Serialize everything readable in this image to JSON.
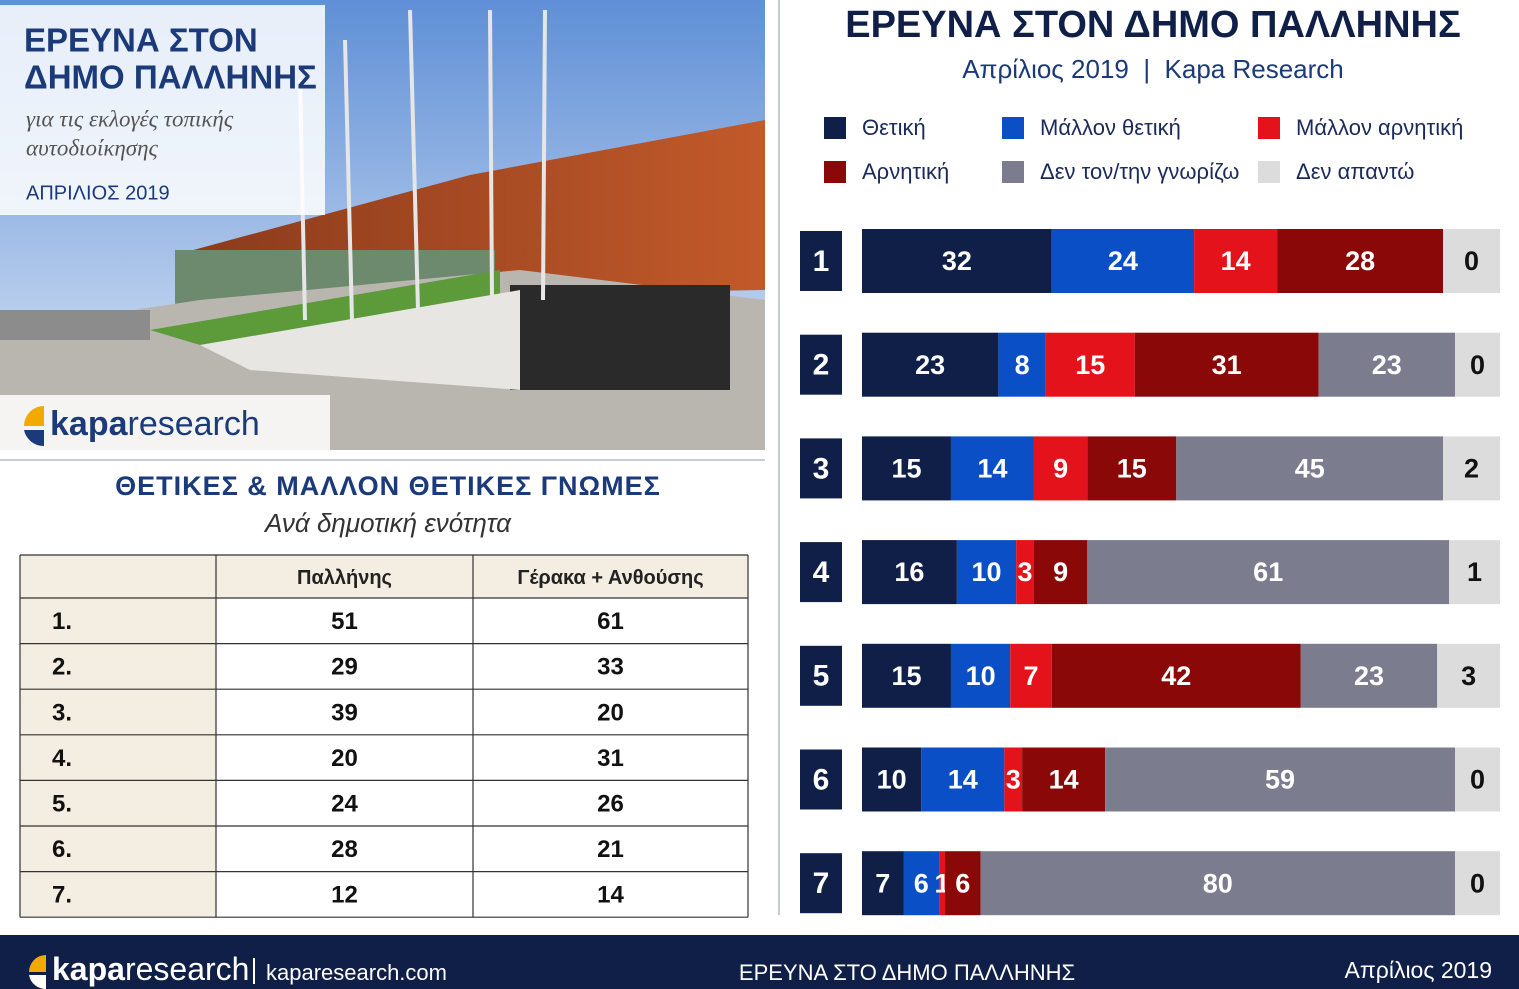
{
  "left_panel": {
    "title_lines": [
      "ΕΡΕΥΝΑ ΣΤΟΝ",
      "ΔΗΜΟ ΠΑΛΛΗΝΗΣ"
    ],
    "subtitle_lines": [
      "για τις εκλογές τοπικής",
      "αυτοδιοίκησης"
    ],
    "date": "ΑΠΡΙΛΙΟΣ 2019",
    "logo": {
      "bold": "kapa",
      "light": "research"
    }
  },
  "table": {
    "title": "ΘΕΤΙΚΕΣ & ΜΑΛΛΟΝ ΘΕΤΙΚΕΣ ΓΝΩΜΕΣ",
    "subtitle": "Ανά δημοτική ενότητα",
    "columns": [
      "Παλλήνης",
      "Γέρακα + Ανθούσης"
    ],
    "rows": [
      [
        "1.",
        51,
        61
      ],
      [
        "2.",
        29,
        33
      ],
      [
        "3.",
        39,
        20
      ],
      [
        "4.",
        20,
        31
      ],
      [
        "5.",
        24,
        26
      ],
      [
        "6.",
        28,
        21
      ],
      [
        "7.",
        12,
        14
      ]
    ]
  },
  "chart_data": {
    "type": "stacked-bar-horizontal",
    "title": "ΕΡΕΥΝΑ ΣΤΟΝ ΔΗΜΟ ΠΑΛΛΗΝΗΣ",
    "subtitle": "Απρίλιος 2019  |  Kapa Research",
    "categories": [
      "1",
      "2",
      "3",
      "4",
      "5",
      "6",
      "7"
    ],
    "xlim": [
      0,
      100
    ],
    "series": [
      {
        "name": "Θετική",
        "color": "#0f1f47",
        "values": [
          32,
          23,
          15,
          16,
          15,
          10,
          7
        ]
      },
      {
        "name": "Μάλλον θετική",
        "color": "#0b4fc6",
        "values": [
          24,
          8,
          14,
          10,
          10,
          14,
          6
        ]
      },
      {
        "name": "Μάλλον αρνητική",
        "color": "#e3121b",
        "values": [
          14,
          15,
          9,
          3,
          7,
          3,
          1
        ]
      },
      {
        "name": "Αρνητική",
        "color": "#8a0808",
        "values": [
          28,
          31,
          15,
          9,
          42,
          14,
          6
        ]
      },
      {
        "name": "Δεν τον/την γνωρίζω",
        "color": "#7b7d8e",
        "values": [
          null,
          23,
          45,
          61,
          23,
          59,
          80
        ]
      },
      {
        "name": "Δεν απαντώ",
        "color": "#dcdcdc",
        "values": [
          0,
          0,
          2,
          1,
          3,
          0,
          0
        ]
      }
    ]
  },
  "footer": {
    "logo": {
      "bold": "kapa",
      "light": "research"
    },
    "site": "kaparesearch.com",
    "title": "ΕΡΕΥΝΑ ΣΤΟ ΔΗΜΟ ΠΑΛΛΗΝΗΣ",
    "date": "Απρίλιος 2019"
  }
}
